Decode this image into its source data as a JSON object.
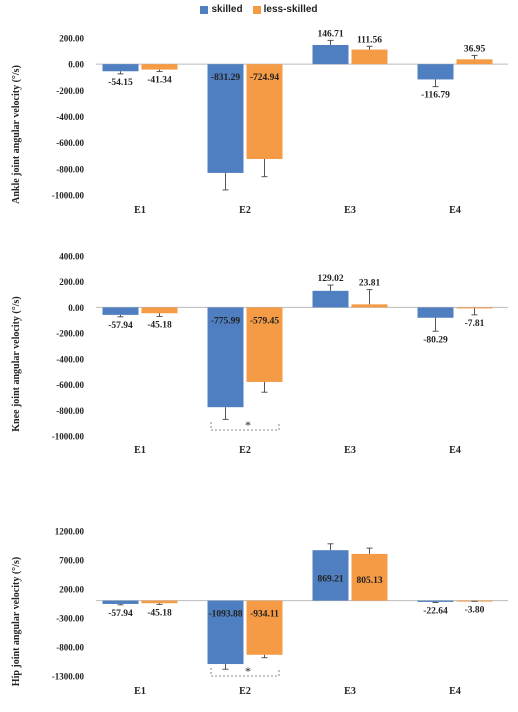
{
  "legend": {
    "skilled": "skilled",
    "less_skilled": "less-skilled"
  },
  "colors": {
    "skilled": "#4f7fc0",
    "less_skilled": "#f59a45",
    "error_bar": "#555555",
    "axis": "#bbbbbb"
  },
  "chart_data": [
    {
      "type": "bar",
      "ylabel": "Ankle joint angular velocity (°/s)",
      "categories": [
        "E1",
        "E2",
        "E3",
        "E4"
      ],
      "yticks": [
        "200.00",
        "0.00",
        "-200.00",
        "-400.00",
        "-600.00",
        "-800.00",
        "-1000.00"
      ],
      "ylim": [
        -1000,
        200
      ],
      "series": [
        {
          "name": "skilled",
          "values": [
            -54.15,
            -831.29,
            146.71,
            -116.79
          ],
          "labels": [
            "-54.15",
            "-831.29",
            "146.71",
            "-116.79"
          ],
          "errors": [
            20,
            130,
            35,
            55
          ]
        },
        {
          "name": "less-skilled",
          "values": [
            -41.34,
            -724.94,
            111.56,
            36.95
          ],
          "labels": [
            "-41.34",
            "-724.94",
            "111.56",
            "36.95"
          ],
          "errors": [
            15,
            135,
            25,
            30
          ]
        }
      ],
      "significance": []
    },
    {
      "type": "bar",
      "ylabel": "Knee joint angular velocity (°/s)",
      "categories": [
        "E1",
        "E2",
        "E3",
        "E4"
      ],
      "yticks": [
        "400.00",
        "200.00",
        "0.00",
        "-200.00",
        "-400.00",
        "-600.00",
        "-800.00",
        "-1000.00"
      ],
      "ylim": [
        -1000,
        400
      ],
      "series": [
        {
          "name": "skilled",
          "values": [
            -57.94,
            -775.99,
            129.02,
            -80.29
          ],
          "labels": [
            "-57.94",
            "-775.99",
            "129.02",
            "-80.29"
          ],
          "errors": [
            15,
            95,
            45,
            105
          ]
        },
        {
          "name": "less-skilled",
          "values": [
            -45.18,
            -579.45,
            23.81,
            -7.81
          ],
          "labels": [
            "-45.18",
            "-579.45",
            "23.81",
            "-7.81"
          ],
          "errors": [
            25,
            80,
            115,
            50
          ]
        }
      ],
      "significance": [
        {
          "category": "E2",
          "label": "*"
        }
      ]
    },
    {
      "type": "bar",
      "ylabel": "Hip joint angular velocity (°/s)",
      "categories": [
        "E1",
        "E2",
        "E3",
        "E4"
      ],
      "yticks": [
        "1200.00",
        "700.00",
        "200.00",
        "-300.00",
        "-800.00",
        "-1300.00"
      ],
      "ylim": [
        -1300,
        1200
      ],
      "series": [
        {
          "name": "skilled",
          "values": [
            -57.94,
            -1093.88,
            869.21,
            -22.64
          ],
          "labels": [
            "-57.94",
            "-1093.88",
            "869.21",
            "-22.64"
          ],
          "errors": [
            15,
            90,
            110,
            10
          ]
        },
        {
          "name": "less-skilled",
          "values": [
            -45.18,
            -934.11,
            805.13,
            -3.8
          ],
          "labels": [
            "-45.18",
            "-934.11",
            "805.13",
            "-3.80"
          ],
          "errors": [
            20,
            50,
            100,
            8
          ]
        }
      ],
      "significance": [
        {
          "category": "E2",
          "label": "*"
        }
      ]
    }
  ]
}
